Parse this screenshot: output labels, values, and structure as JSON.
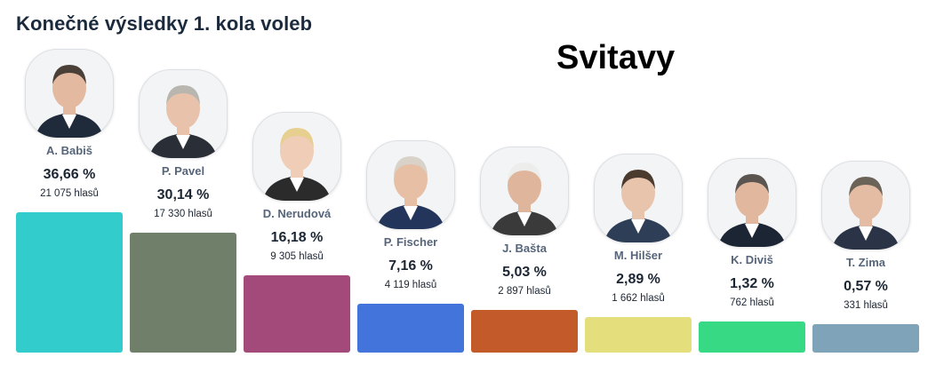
{
  "header": {
    "title": "Konečné výsledky 1. kola voleb",
    "city": "Svitavy"
  },
  "chart_data": {
    "type": "bar",
    "title": "Konečné výsledky 1. kola voleb",
    "subtitle": "Svitavy",
    "categories": [
      "A. Babiš",
      "P. Pavel",
      "D. Nerudová",
      "P. Fischer",
      "J. Bašta",
      "M. Hilšer",
      "K. Diviš",
      "T. Zima"
    ],
    "values": [
      36.66,
      30.14,
      16.18,
      7.16,
      5.03,
      2.89,
      1.32,
      0.57
    ],
    "percent_labels": [
      "36,66 %",
      "30,14 %",
      "16,18 %",
      "7,16 %",
      "5,03 %",
      "2,89 %",
      "1,32 %",
      "0,57 %"
    ],
    "vote_labels": [
      "21 075 hlasů",
      "17 330 hlasů",
      "9 305 hlasů",
      "4 119 hlasů",
      "2 897 hlasů",
      "1 662 hlasů",
      "762 hlasů",
      "331 hlasů"
    ],
    "colors": [
      "#33cccc",
      "#6f7f69",
      "#a44a7a",
      "#4274dc",
      "#c25a2a",
      "#e5de7d",
      "#38d985",
      "#7fa3b9"
    ],
    "portrait_icons": [
      "portrait-icon",
      "portrait-icon",
      "portrait-icon",
      "portrait-icon",
      "portrait-icon",
      "portrait-icon",
      "portrait-icon",
      "portrait-icon"
    ]
  }
}
